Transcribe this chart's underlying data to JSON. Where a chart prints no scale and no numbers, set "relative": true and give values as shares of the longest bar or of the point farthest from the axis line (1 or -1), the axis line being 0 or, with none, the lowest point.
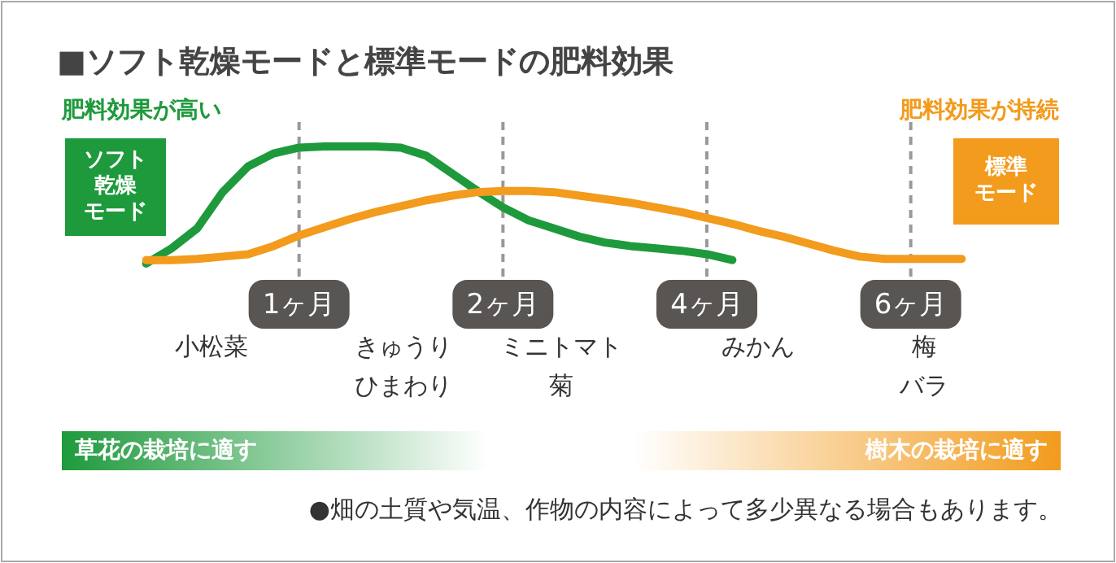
{
  "chart_data": {
    "type": "line",
    "relative": true,
    "title": "■ソフト乾燥モードと標準モードの肥料効果",
    "categories": [
      null,
      null,
      null,
      null,
      null,
      null,
      "1ヶ月",
      null,
      null,
      null,
      null,
      null,
      null,
      null,
      "2ヶ月",
      null,
      null,
      null,
      null,
      null,
      null,
      null,
      "4ヶ月",
      null,
      null,
      null,
      null,
      null,
      null,
      null,
      "6ヶ月",
      null,
      null
    ],
    "grid": "x",
    "line_style": "solid",
    "marker": "none",
    "series": [
      {
        "name": "ソフト乾燥モード",
        "color": "#1e9a3c",
        "values": [
          0,
          0.13,
          0.3,
          0.61,
          0.83,
          0.94,
          0.99,
          1,
          1,
          1,
          0.99,
          0.92,
          0.77,
          0.62,
          0.48,
          0.37,
          0.3,
          0.23,
          0.18,
          0.15,
          0.13,
          0.11,
          0.08,
          0.03,
          null,
          null,
          null,
          null,
          null,
          null,
          null,
          null,
          null
        ]
      },
      {
        "name": "標準モード",
        "color": "#f29b1d",
        "values": [
          0.03,
          0.03,
          0.04,
          0.06,
          0.08,
          0.15,
          0.24,
          0.31,
          0.38,
          0.44,
          0.49,
          0.54,
          0.58,
          0.61,
          0.62,
          0.62,
          0.61,
          0.58,
          0.55,
          0.52,
          0.48,
          0.44,
          0.39,
          0.34,
          0.28,
          0.23,
          0.17,
          0.11,
          0.06,
          0.04,
          0.04,
          0.04,
          0.04
        ]
      }
    ],
    "annotations": [
      "小松菜",
      "きゅうりひまわり",
      "ミニトマト菊",
      "みかん",
      "梅バラ",
      "肥料効果が高い",
      "肥料効果が持続",
      "草花の栽培に適す",
      "樹木の栽培に適す",
      "●畑の土質や気温、作物の内容によって多少異なる場合もあります。"
    ]
  }
}
